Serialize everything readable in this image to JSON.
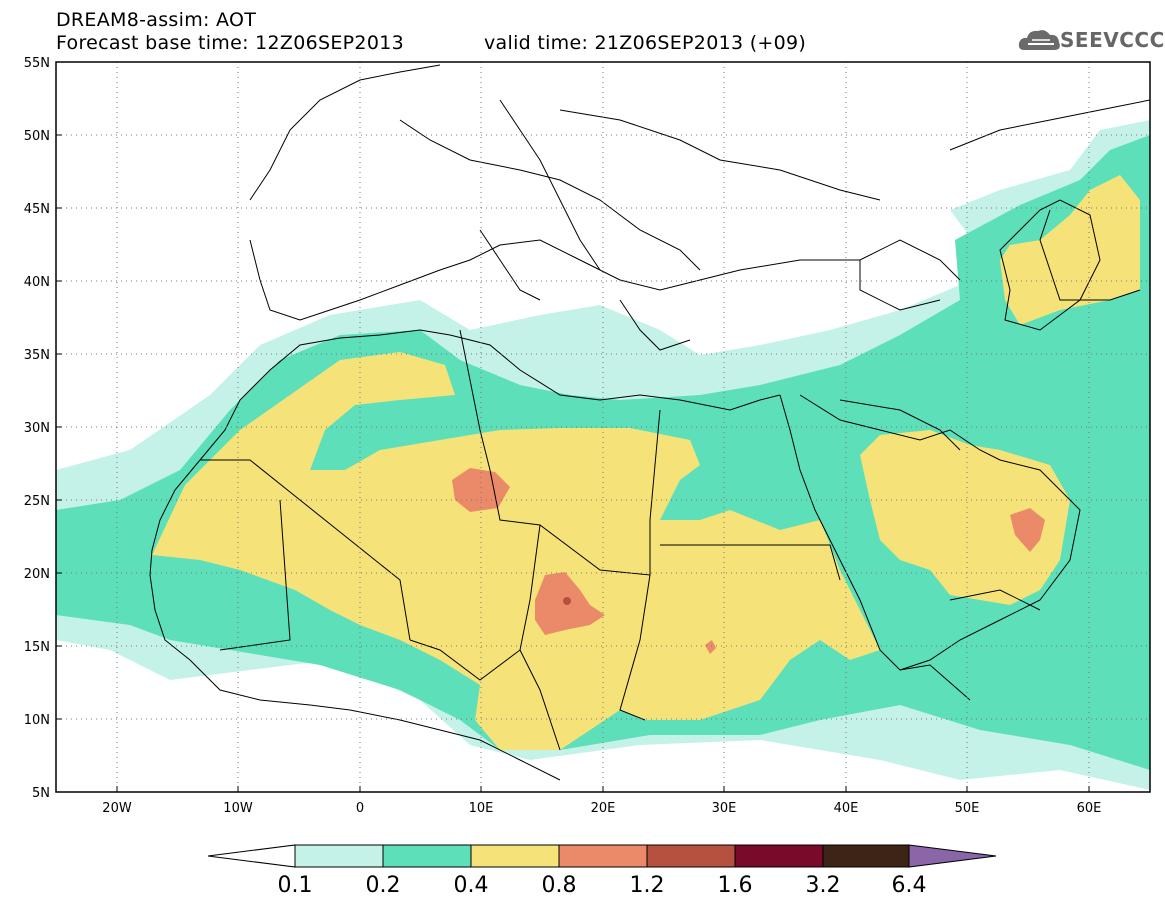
{
  "title": {
    "line1": "DREAM8-assim: AOT",
    "base_time": "Forecast base time: 12Z06SEP2013",
    "valid_time": "valid time: 21Z06SEP2013 (+09)"
  },
  "logo": {
    "text": "SEEVCCC",
    "icon": "cloud-logo-icon"
  },
  "map": {
    "lon_range": [
      -25,
      65
    ],
    "lat_range": [
      5,
      55
    ],
    "lat_ticks": [
      "55N",
      "50N",
      "45N",
      "40N",
      "35N",
      "30N",
      "25N",
      "20N",
      "15N",
      "10N",
      "5N"
    ],
    "lon_ticks": [
      "20W",
      "10W",
      "0",
      "10E",
      "20E",
      "30E",
      "40E",
      "50E",
      "60E"
    ],
    "grid": "dotted"
  },
  "colorbar": {
    "labels": [
      "0.1",
      "0.2",
      "0.4",
      "0.8",
      "1.2",
      "1.6",
      "3.2",
      "6.4"
    ],
    "colors": [
      "#ffffff",
      "#c4f2e8",
      "#5ddfb9",
      "#f5e37a",
      "#eb8a68",
      "#b6513f",
      "#7a0a2a",
      "#3d2416",
      "#8a66a8"
    ]
  }
}
